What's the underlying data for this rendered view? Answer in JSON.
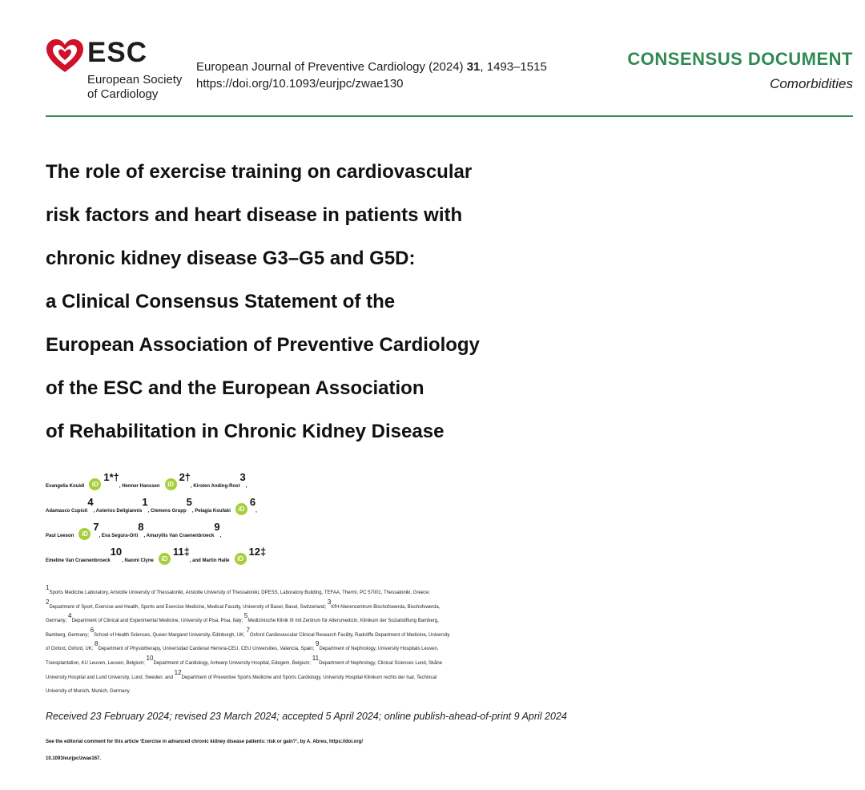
{
  "logo": {
    "name": "ESC",
    "subtitle_line1": "European Society",
    "subtitle_line2": "of Cardiology",
    "colors": {
      "heart": "#d0112b",
      "text": "#1d1d1b"
    }
  },
  "journal": {
    "citation_prefix": "European Journal of Preventive Cardiology (2024) ",
    "volume": "31",
    "pages": ", 1493–1515",
    "doi": "https://doi.org/10.1093/eurjpc/zwae130"
  },
  "doc_type": {
    "label": "CONSENSUS DOCUMENT",
    "category": "Comorbidities",
    "accent_color": "#2f8a52"
  },
  "title_lines": [
    "The role of exercise training on cardiovascular",
    "risk factors and heart disease in patients with",
    "chronic kidney disease G3–G5 and G5D:",
    "a Clinical Consensus Statement of the",
    "European Association of Preventive Cardiology",
    "of the ESC and the European Association",
    "of Rehabilitation in Chronic Kidney Disease"
  ],
  "authors": {
    "a1": "Evangelia Kouidi",
    "a1_sup": "1*†",
    "a2": ", Henner Hanssen",
    "a2_sup": "2†",
    "a3": ", Kirsten Anding-Rost",
    "a3_sup": "3",
    "a3_end": ",",
    "a4": "Adamasco Cupisti",
    "a4_sup": "4",
    "a5": ", Asterios Deligiannis",
    "a5_sup": "1",
    "a6": ", Clemens Grupp",
    "a6_sup": "5",
    "a7": ", Pelagia Koufaki",
    "a7_sup": "6",
    "a7_end": ",",
    "a8": "Paul Leeson",
    "a8_sup": "7",
    "a9": ", Eva Segura-Orti",
    "a9_sup": "8",
    "a10": ", Amaryllis Van Craenenbroeck",
    "a10_sup": "9",
    "a10_end": ",",
    "a11": "Emeline Van Craenenbroeck",
    "a11_sup": "10",
    "a12": ", Naomi Clyne",
    "a12_sup": "11‡",
    "a13": ", and Martin Halle",
    "a13_sup": "12‡",
    "orcid_label": "iD"
  },
  "affiliations": {
    "l1_s1": "1",
    "l1": "Sports Medicine Laboratory, Aristotle University of Thessaloniki, Aristotle University of Thessaloniki, DPESS, Laboratory Building, TEFAA, Thermi, PC 57001, Thessaloniki, Greece;",
    "l2_s1": "2",
    "l2_a": "Department of Sport, Exercise and Health, Sports and Exercise Medicine, Medical Faculty, University of Basel, Basel, Switzerland; ",
    "l2_s2": "3",
    "l2_b": "KfH-Nierenzentrum Bischofswerda, Bischofswerda,",
    "l3_a": "Germany; ",
    "l3_s1": "4",
    "l3_b": "Department of Clinical and Experimental Medicine, University of Pisa, Pisa, Italy; ",
    "l3_s2": "5",
    "l3_c": "Medizinische Klinik III mit Zentrum für Altersmedizin, Klinikum der Sozialstiftung Bamberg,",
    "l4_a": "Bamberg, Germany; ",
    "l4_s1": "6",
    "l4_b": "School of Health Sciences, Queen Margaret University, Edinburgh, UK; ",
    "l4_s2": "7",
    "l4_c": "Oxford Cardiovascular Clinical Research Facility, Radcliffe Department of Medicine, University",
    "l5_a": "of Oxford, Oxford, UK; ",
    "l5_s1": "8",
    "l5_b": "Department of Physiotherapy, Universidad Cardenal Herrera-CEU, CEU Universities, Valencia, Spain; ",
    "l5_s2": "9",
    "l5_c": "Department of Nephrology, University Hospitals Leuven,",
    "l6_a": "Transplantation, KU Leuven, Leuven, Belgium; ",
    "l6_s1": "10",
    "l6_b": "Department of Cardiology, Antwerp University Hospital, Edegem, Belgium; ",
    "l6_s2": "11",
    "l6_c": "Department of Nephrology, Clinical Sciences Lund, Skåne",
    "l7_a": "University Hospital and Lund University, Lund, Sweden; and ",
    "l7_s1": "12",
    "l7_b": "Department of Preventive Sports Medicine and Sports Cardiology, University Hospital Klinikum rechts der Isar, Technical",
    "l8": "University of Munich, Munich, Germany"
  },
  "received": "Received 23 February 2024; revised 23 March 2024; accepted 5 April 2024; online publish-ahead-of-print 9 April 2024",
  "editorial": {
    "line1": "See the editorial comment for this article ‘Exercise in advanced chronic kidney disease patients: risk or gain?’, by A. Abreu, https://doi.org/",
    "line2": "10.1093/eurjpc/zwae167."
  }
}
